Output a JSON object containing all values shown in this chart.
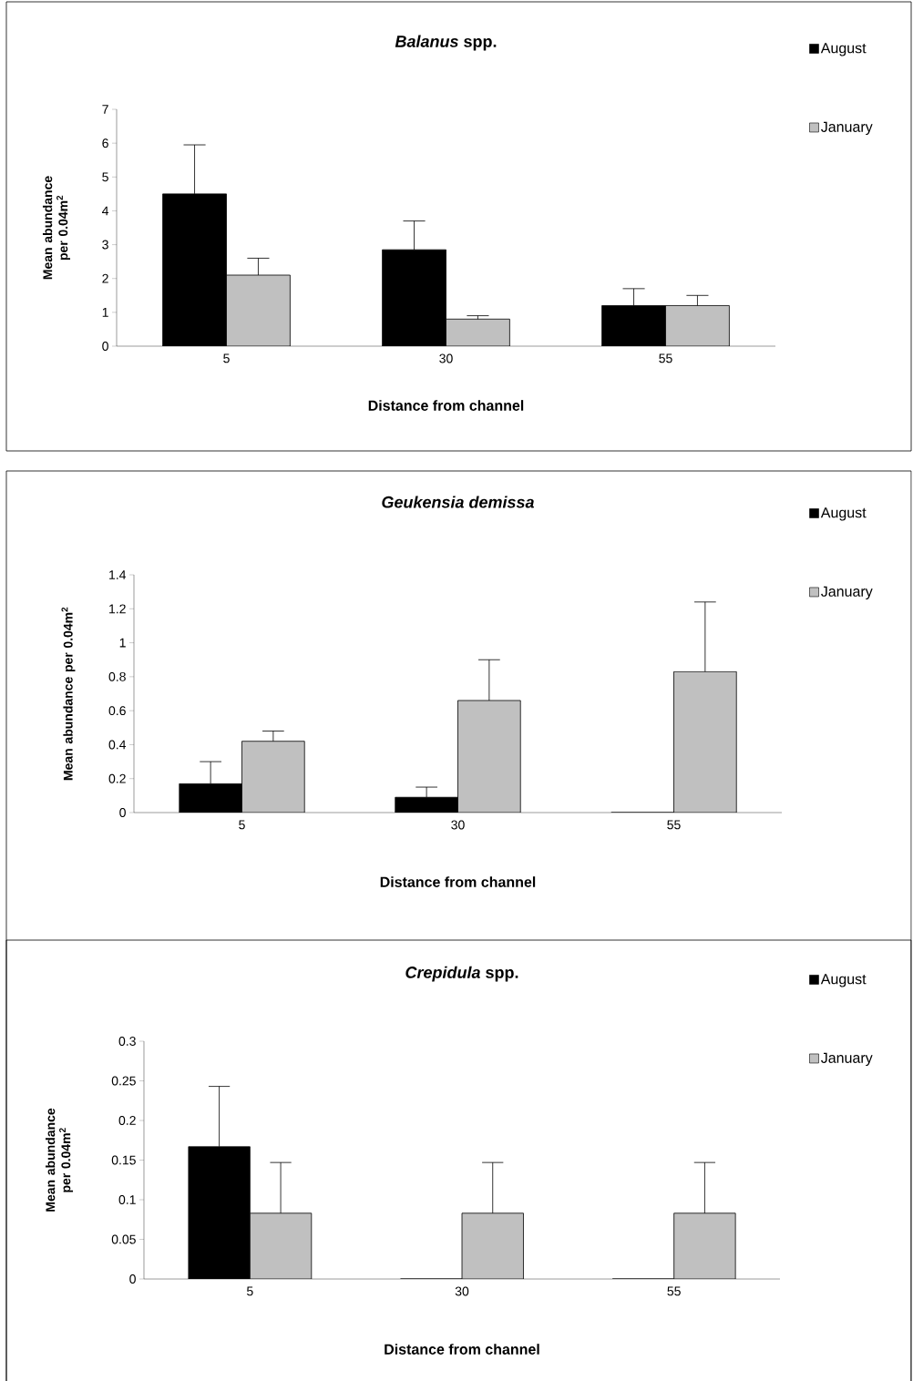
{
  "chart_data": [
    {
      "type": "bar",
      "title": "*Balanus* spp.",
      "xlabel": "Distance from channel",
      "ylabel": "Mean abundance per 0.04m$^{2}$",
      "categories": [
        "5",
        "30",
        "55"
      ],
      "series": [
        {
          "name": "August",
          "color": "#000000",
          "values": [
            4.5,
            2.85,
            1.2
          ],
          "errors": [
            1.45,
            0.85,
            0.5
          ]
        },
        {
          "name": "January",
          "color": "#c0c0c0",
          "values": [
            2.1,
            0.8,
            1.2
          ],
          "errors": [
            0.5,
            0.1,
            0.3
          ]
        }
      ],
      "ylim": [
        0,
        7
      ],
      "yticks": [
        0,
        1,
        2,
        3,
        4,
        5,
        6,
        7
      ],
      "legend": "top right"
    },
    {
      "type": "bar",
      "title": "*Geukensia demissa*",
      "xlabel": "Distance from channel",
      "ylabel": "Mean abundance per 0.04m$^{2}$",
      "categories": [
        "5",
        "30",
        "55"
      ],
      "series": [
        {
          "name": "August",
          "color": "#000000",
          "values": [
            0.17,
            0.09,
            0
          ],
          "errors": [
            0.13,
            0.06,
            null
          ]
        },
        {
          "name": "January",
          "color": "#c0c0c0",
          "values": [
            0.42,
            0.66,
            0.83
          ],
          "errors": [
            0.06,
            0.24,
            0.41
          ]
        }
      ],
      "ylim": [
        0,
        1.4
      ],
      "yticks": [
        0,
        0.2,
        0.4,
        0.6,
        0.8,
        1,
        1.2,
        1.4
      ],
      "legend": "top right"
    },
    {
      "type": "bar",
      "title": "*Crepidula* spp.",
      "xlabel": "Distance from channel",
      "ylabel": "Mean abundance per 0.04m$^{2}$",
      "categories": [
        "5",
        "30",
        "55"
      ],
      "series": [
        {
          "name": "August",
          "color": "#000000",
          "values": [
            0.167,
            0,
            0
          ],
          "errors": [
            0.076,
            null,
            null
          ]
        },
        {
          "name": "January",
          "color": "#c0c0c0",
          "values": [
            0.083,
            0.083,
            0.083
          ],
          "errors": [
            0.064,
            0.064,
            0.064
          ]
        }
      ],
      "ylim": [
        0,
        0.3
      ],
      "yticks": [
        0,
        0.05,
        0.1,
        0.15,
        0.2,
        0.25,
        0.3
      ],
      "legend": "top right"
    }
  ]
}
